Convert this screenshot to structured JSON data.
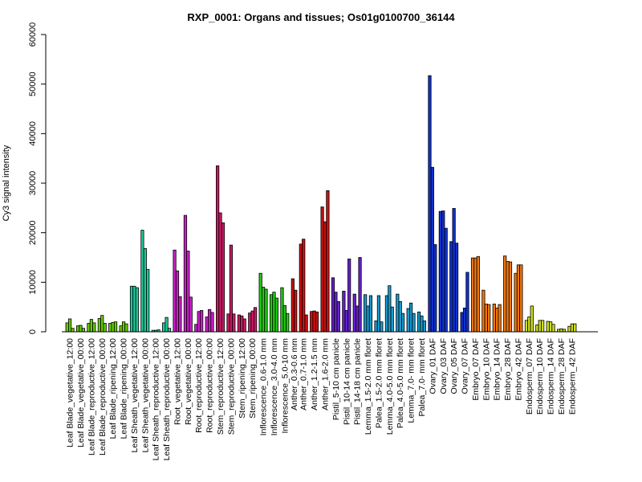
{
  "chart_data": {
    "type": "bar",
    "title": "RXP_0001: Organs and tissues; Os01g0100700_36144",
    "xlabel": "",
    "ylabel": "Cy3 signal intensity",
    "ylim": [
      0,
      60000
    ],
    "yticks": [
      0,
      10000,
      20000,
      30000,
      40000,
      50000,
      60000
    ],
    "grid": false,
    "legend": "none",
    "category_labels": [
      "Leaf Blade_vegetative_12:00",
      "Leaf Blade_vegetative_00:00",
      "Leaf Blade_reproductive_12:00",
      "Leaf Blade_reproductive_00:00",
      "Leaf Blade_ripening_12:00",
      "Leaf Blade_ripening_00:00",
      "Leaf Sheath_vegetative_12:00",
      "Leaf Sheath_vegetative_00:00",
      "Leaf Sheath_reproductive_12:00",
      "Leaf Sheath_reproductive_00:00",
      "Root_vegetative_12:00",
      "Root_vegetative_00:00",
      "Root_reproductive_12:00",
      "Root_reproductive_00:00",
      "Stem_reproductive_12:00",
      "Stem_reproductive_00:00",
      "Stem_ripening_12:00",
      "Stem_ripening_00:00",
      "Inflorescence_0.6-1.0 mm",
      "Inflorescence_3.0-4.0 mm",
      "Inflorescence_5.0-10 mm",
      "Anther_0.3-0.6 mm",
      "Anther_0.7-1.0 mm",
      "Anther_1.2-1.5 mm",
      "Anther_1.6-2.0 mm",
      "Pistil_5-10 cm panicle",
      "Pistil_10-14 cm panicle",
      "Pistil_14-18 cm panicle",
      "Lemma_1.5-2.0 mm floret",
      "Palea_1.5-2.0 mm floret",
      "Lemma_4.0-5.0 mm floret",
      "Palea_4.0-5.0 mm floret",
      "Lemma_7.0- mm floret",
      "Palea_7.0- mm floret",
      "Ovary_01 DAF",
      "Ovary_03 DAF",
      "Ovary_05 DAF",
      "Ovary_07 DAF",
      "Embryo_07 DAF",
      "Embryo_10 DAF",
      "Embryo_14 DAF",
      "Embryo_28 DAF",
      "Embryo_42 DAF",
      "Endosperm_07 DAF",
      "Endosperm_10 DAF",
      "Endosperm_14 DAF",
      "Endosperm_28 DAF",
      "Endosperm_42 DAF"
    ],
    "groups": [
      {
        "label_index": 0,
        "color": "#66cc00",
        "values": [
          1800,
          2600,
          700
        ]
      },
      {
        "label_index": 1,
        "color": "#66cc00",
        "values": [
          1200,
          1300,
          700
        ]
      },
      {
        "label_index": 2,
        "color": "#66cc00",
        "values": [
          1700,
          2500,
          1800
        ]
      },
      {
        "label_index": 3,
        "color": "#66cc00",
        "values": [
          2700,
          3300,
          1700
        ]
      },
      {
        "label_index": 4,
        "color": "#66cc00",
        "values": [
          1700,
          1900,
          2000
        ]
      },
      {
        "label_index": 5,
        "color": "#66cc00",
        "values": [
          1200,
          2000,
          1600
        ]
      },
      {
        "label_index": 6,
        "color": "#1fc999",
        "values": [
          9200,
          9200,
          8900
        ]
      },
      {
        "label_index": 7,
        "color": "#1fc999",
        "values": [
          20500,
          16800,
          12600
        ]
      },
      {
        "label_index": 8,
        "color": "#1fc999",
        "values": [
          300,
          300,
          400
        ]
      },
      {
        "label_index": 9,
        "color": "#1fc999",
        "values": [
          1800,
          2900,
          700
        ]
      },
      {
        "label_index": 10,
        "color": "#cc1fcc",
        "values": [
          16500,
          12300,
          7100
        ]
      },
      {
        "label_index": 11,
        "color": "#cc1fcc",
        "values": [
          23500,
          16300,
          7000
        ]
      },
      {
        "label_index": 12,
        "color": "#cc1fcc",
        "values": [
          1500,
          4100,
          4300
        ]
      },
      {
        "label_index": 13,
        "color": "#cc1fcc",
        "values": [
          3000,
          4500,
          3900
        ]
      },
      {
        "label_index": 14,
        "color": "#cc1a66",
        "values": [
          33500,
          24000,
          22000
        ]
      },
      {
        "label_index": 15,
        "color": "#cc1a66",
        "values": [
          3600,
          17500,
          3600
        ]
      },
      {
        "label_index": 16,
        "color": "#cc1a66",
        "values": [
          3400,
          3200,
          2600
        ]
      },
      {
        "label_index": 17,
        "color": "#cc1a66",
        "values": [
          3800,
          4200,
          4900
        ]
      },
      {
        "label_index": 18,
        "color": "#22cc11",
        "values": [
          11800,
          9000,
          8600
        ]
      },
      {
        "label_index": 19,
        "color": "#22cc11",
        "values": [
          7500,
          8000,
          6800
        ]
      },
      {
        "label_index": 20,
        "color": "#22cc11",
        "values": [
          8900,
          5300,
          3700
        ]
      },
      {
        "label_index": 21,
        "color": "#cc1111",
        "values": [
          10700,
          8400
        ]
      },
      {
        "label_index": 22,
        "color": "#cc1111",
        "values": [
          17700,
          18700,
          3400
        ]
      },
      {
        "label_index": 23,
        "color": "#cc1111",
        "values": [
          4100,
          4200,
          4000
        ]
      },
      {
        "label_index": 24,
        "color": "#cc1111",
        "values": [
          25200,
          22200,
          28500
        ]
      },
      {
        "label_index": 25,
        "color": "#6622cc",
        "values": [
          10900,
          8000,
          6100
        ]
      },
      {
        "label_index": 26,
        "color": "#6622cc",
        "values": [
          8200,
          4300,
          14700
        ]
      },
      {
        "label_index": 27,
        "color": "#6622cc",
        "values": [
          7600,
          5200,
          15000
        ]
      },
      {
        "label_index": 28,
        "color": "#1a99cc",
        "values": [
          7500,
          5200,
          7300
        ]
      },
      {
        "label_index": 29,
        "color": "#1a99cc",
        "values": [
          2200,
          7300,
          2000
        ]
      },
      {
        "label_index": 30,
        "color": "#1a99cc",
        "values": [
          7300,
          9300,
          5000
        ]
      },
      {
        "label_index": 31,
        "color": "#1a99cc",
        "values": [
          7600,
          6100,
          3700
        ]
      },
      {
        "label_index": 32,
        "color": "#1a99cc",
        "values": [
          4700,
          5800,
          3700
        ]
      },
      {
        "label_index": 33,
        "color": "#1a99cc",
        "values": [
          4000,
          3200,
          2200
        ]
      },
      {
        "label_index": 34,
        "color": "#1133cc",
        "values": [
          51700,
          33200,
          17600
        ]
      },
      {
        "label_index": 35,
        "color": "#1133cc",
        "values": [
          24300,
          24400,
          20900
        ]
      },
      {
        "label_index": 36,
        "color": "#1133cc",
        "values": [
          18200,
          24900,
          17900
        ]
      },
      {
        "label_index": 37,
        "color": "#1133cc",
        "values": [
          3900,
          4800,
          12000
        ]
      },
      {
        "label_index": 38,
        "color": "#ee7711",
        "values": [
          14900,
          14900,
          15200
        ]
      },
      {
        "label_index": 39,
        "color": "#ee7711",
        "values": [
          8400,
          5600,
          5500
        ]
      },
      {
        "label_index": 40,
        "color": "#ee7711",
        "values": [
          5600,
          4800,
          5500
        ]
      },
      {
        "label_index": 41,
        "color": "#ee7711",
        "values": [
          15300,
          14200,
          14100
        ]
      },
      {
        "label_index": 42,
        "color": "#ee7711",
        "values": [
          11800,
          13500,
          13500
        ]
      },
      {
        "label_index": 43,
        "color": "#ccdd22",
        "values": [
          2300,
          3000,
          5200
        ]
      },
      {
        "label_index": 44,
        "color": "#ccdd22",
        "values": [
          1400,
          2300,
          2300
        ]
      },
      {
        "label_index": 45,
        "color": "#ccdd22",
        "values": [
          2100,
          2000,
          1500
        ]
      },
      {
        "label_index": 46,
        "color": "#ccdd22",
        "values": [
          500,
          600,
          500
        ]
      },
      {
        "label_index": 47,
        "color": "#ccdd22",
        "values": [
          1100,
          1600,
          1600
        ]
      }
    ]
  }
}
